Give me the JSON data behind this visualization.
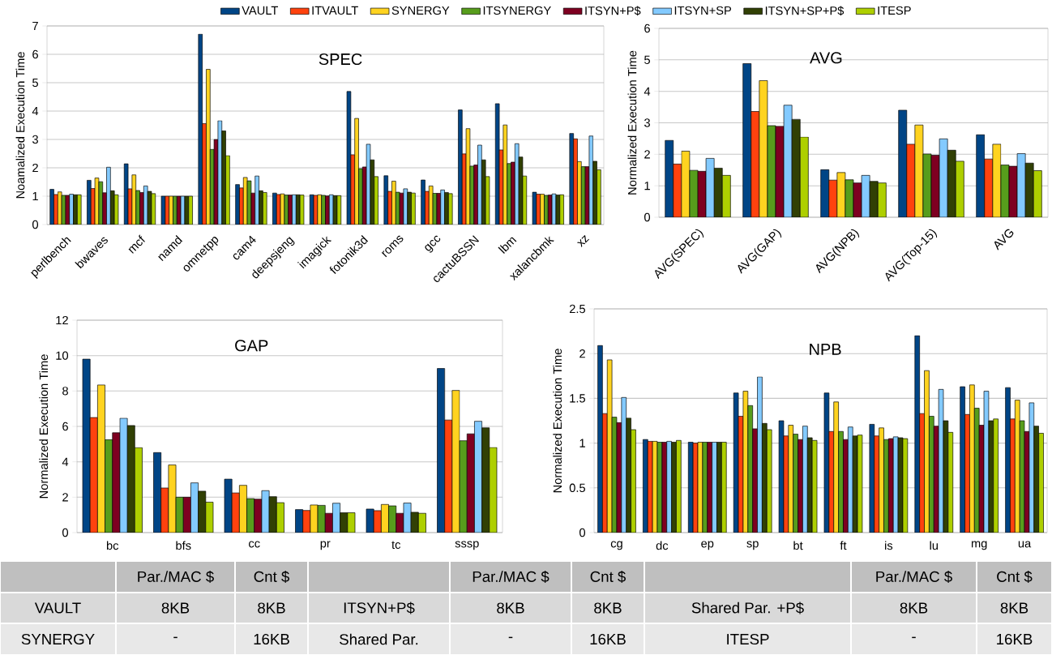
{
  "chart_data": [
    {
      "type": "bar",
      "title": "SPEC",
      "ylabel": "Noamalized Execution Time",
      "categories": [
        "perlbench",
        "bwaves",
        "mcf",
        "namd",
        "omnetpp",
        "cam4",
        "deepsjeng",
        "imagick",
        "fotonik3d",
        "roms",
        "gcc",
        "cactuBSSN",
        "lbm",
        "xalancbmk",
        "xz"
      ],
      "ylim": [
        0,
        7
      ],
      "yticks": [
        0,
        1,
        2,
        3,
        4,
        5,
        6,
        7
      ],
      "grid": "y",
      "legend": "top",
      "series": [
        {
          "name": "VAULT",
          "color": "#004586",
          "values": [
            1.24,
            1.56,
            2.14,
            1.0,
            6.71,
            1.41,
            1.11,
            1.05,
            4.69,
            1.72,
            1.57,
            4.04,
            4.26,
            1.14,
            3.21
          ]
        },
        {
          "name": "ITVAULT",
          "color": "#ff420e",
          "values": [
            1.06,
            1.27,
            1.26,
            1.0,
            3.56,
            1.29,
            1.06,
            1.03,
            2.46,
            1.17,
            1.17,
            2.49,
            2.63,
            1.07,
            3.02
          ]
        },
        {
          "name": "SYNERGY",
          "color": "#ffd320",
          "values": [
            1.15,
            1.64,
            1.75,
            1.0,
            5.47,
            1.66,
            1.08,
            1.05,
            3.74,
            1.53,
            1.36,
            3.38,
            3.51,
            1.07,
            2.22
          ]
        },
        {
          "name": "ITSYNERGY",
          "color": "#579d1c",
          "values": [
            1.03,
            1.51,
            1.2,
            1.0,
            2.65,
            1.54,
            1.04,
            1.03,
            1.97,
            1.14,
            1.1,
            2.06,
            2.15,
            1.03,
            2.04
          ]
        },
        {
          "name": "ITSYN+P$",
          "color": "#7e0021",
          "values": [
            1.03,
            1.12,
            1.13,
            1.0,
            3.0,
            1.11,
            1.04,
            1.01,
            2.03,
            1.11,
            1.1,
            2.1,
            2.2,
            1.04,
            2.04
          ]
        },
        {
          "name": "ITSYN+SP",
          "color": "#83caff",
          "values": [
            1.07,
            2.02,
            1.36,
            1.0,
            3.66,
            1.71,
            1.05,
            1.05,
            2.83,
            1.26,
            1.22,
            2.8,
            2.85,
            1.08,
            3.12
          ]
        },
        {
          "name": "ITSYN+SP+P$",
          "color": "#314004",
          "values": [
            1.05,
            1.19,
            1.17,
            1.0,
            3.3,
            1.19,
            1.05,
            1.02,
            2.28,
            1.14,
            1.13,
            2.28,
            2.38,
            1.04,
            2.23
          ]
        },
        {
          "name": "ITESP",
          "color": "#aecf00",
          "values": [
            1.05,
            1.05,
            1.09,
            1.0,
            2.43,
            1.13,
            1.04,
            1.02,
            1.69,
            1.11,
            1.09,
            1.69,
            1.71,
            1.05,
            1.93
          ]
        }
      ]
    },
    {
      "type": "bar",
      "title": "AVG",
      "ylabel": "Normalized Execution Time",
      "categories": [
        "AVG(SPEC)",
        "AVG(GAP)",
        "AVG(NPB)",
        "AVG(Top-15)",
        "AVG"
      ],
      "ylim": [
        0,
        6
      ],
      "yticks": [
        0,
        1,
        2,
        3,
        4,
        5,
        6
      ],
      "grid": "y",
      "series": [
        {
          "color": "#004586",
          "values": [
            2.44,
            4.88,
            1.51,
            3.4,
            2.62
          ]
        },
        {
          "color": "#ff420e",
          "values": [
            1.69,
            3.36,
            1.18,
            2.32,
            1.85
          ]
        },
        {
          "color": "#ffd320",
          "values": [
            2.1,
            4.34,
            1.42,
            2.93,
            2.32
          ]
        },
        {
          "color": "#579d1c",
          "values": [
            1.49,
            2.91,
            1.19,
            2.01,
            1.66
          ]
        },
        {
          "color": "#7e0021",
          "values": [
            1.46,
            2.89,
            1.09,
            1.97,
            1.62
          ]
        },
        {
          "color": "#83caff",
          "values": [
            1.87,
            3.56,
            1.33,
            2.49,
            2.02
          ]
        },
        {
          "color": "#314004",
          "values": [
            1.56,
            3.11,
            1.14,
            2.13,
            1.72
          ]
        },
        {
          "color": "#aecf00",
          "values": [
            1.33,
            2.55,
            1.09,
            1.78,
            1.48
          ]
        }
      ]
    },
    {
      "type": "bar",
      "title": "GAP",
      "ylabel": "Normalized Execution Time",
      "categories": [
        "bc",
        "bfs",
        "cc",
        "pr",
        "tc",
        "sssp"
      ],
      "ylim": [
        0,
        12
      ],
      "yticks": [
        0,
        2,
        4,
        6,
        8,
        10,
        12
      ],
      "grid": "y",
      "series": [
        {
          "color": "#004586",
          "values": [
            9.8,
            4.52,
            3.02,
            1.3,
            1.33,
            9.27
          ]
        },
        {
          "color": "#ff420e",
          "values": [
            6.5,
            2.52,
            2.24,
            1.25,
            1.24,
            6.36
          ]
        },
        {
          "color": "#ffd320",
          "values": [
            8.34,
            3.82,
            2.67,
            1.56,
            1.59,
            8.03
          ]
        },
        {
          "color": "#579d1c",
          "values": [
            5.25,
            2.0,
            1.92,
            1.54,
            1.51,
            5.19
          ]
        },
        {
          "color": "#7e0021",
          "values": [
            5.64,
            2.0,
            1.89,
            1.09,
            1.09,
            5.58
          ]
        },
        {
          "color": "#83caff",
          "values": [
            6.46,
            2.81,
            2.37,
            1.66,
            1.67,
            6.29
          ]
        },
        {
          "color": "#314004",
          "values": [
            6.05,
            2.34,
            2.03,
            1.12,
            1.15,
            5.92
          ]
        },
        {
          "color": "#aecf00",
          "values": [
            4.8,
            1.72,
            1.69,
            1.12,
            1.09,
            4.81
          ]
        }
      ]
    },
    {
      "type": "bar",
      "title": "NPB",
      "ylabel": "Normalized Execution Time",
      "categories": [
        "cg",
        "dc",
        "ep",
        "sp",
        "bt",
        "ft",
        "is",
        "lu",
        "mg",
        "ua"
      ],
      "ylim": [
        0,
        2.5
      ],
      "yticks": [
        0,
        0.5,
        1,
        1.5,
        2,
        2.5
      ],
      "grid": "y",
      "series": [
        {
          "color": "#004586",
          "values": [
            2.09,
            1.04,
            1.01,
            1.56,
            1.25,
            1.56,
            1.21,
            2.2,
            1.63,
            1.62
          ]
        },
        {
          "color": "#ff420e",
          "values": [
            1.33,
            1.02,
            1.0,
            1.3,
            1.08,
            1.13,
            1.08,
            1.33,
            1.32,
            1.27
          ]
        },
        {
          "color": "#ffd320",
          "values": [
            1.93,
            1.02,
            1.01,
            1.58,
            1.2,
            1.46,
            1.17,
            1.81,
            1.65,
            1.48
          ]
        },
        {
          "color": "#579d1c",
          "values": [
            1.29,
            1.01,
            1.01,
            1.42,
            1.1,
            1.13,
            1.04,
            1.3,
            1.39,
            1.25
          ]
        },
        {
          "color": "#7e0021",
          "values": [
            1.23,
            1.01,
            1.01,
            1.16,
            1.04,
            1.04,
            1.05,
            1.19,
            1.2,
            1.13
          ]
        },
        {
          "color": "#83caff",
          "values": [
            1.51,
            1.02,
            1.01,
            1.74,
            1.19,
            1.18,
            1.07,
            1.6,
            1.58,
            1.45
          ]
        },
        {
          "color": "#314004",
          "values": [
            1.28,
            1.01,
            1.01,
            1.22,
            1.06,
            1.08,
            1.06,
            1.25,
            1.25,
            1.19
          ]
        },
        {
          "color": "#aecf00",
          "values": [
            1.15,
            1.03,
            1.01,
            1.15,
            1.03,
            1.09,
            1.05,
            1.12,
            1.27,
            1.11
          ]
        }
      ]
    },
    {
      "type": "other",
      "categories": [
        null,
        "Par./MAC $",
        "Cnt $",
        null,
        "Par./MAC $",
        "Cnt $",
        null,
        "Par./MAC $",
        "Cnt $"
      ],
      "annotations": [
        "VAULT",
        "8KB",
        "8KB",
        "ITSYN+P$",
        "8KB",
        "8KB",
        "Shared Par. +P$",
        "8KB",
        "8KB",
        "SYNERGY",
        "-",
        "16KB",
        "Shared Par.",
        "-",
        "16KB",
        "ITESP",
        "-",
        "16KB"
      ]
    }
  ]
}
